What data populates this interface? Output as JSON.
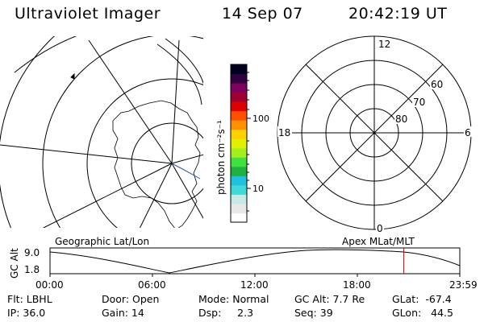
{
  "header": {
    "instrument": "Ultraviolet Imager",
    "date": "14 Sep 07",
    "time": "20:42:19 UT"
  },
  "colorbar": {
    "unit_label": "photon cm⁻²s⁻¹",
    "ticks": [
      "100",
      "10"
    ],
    "colors": [
      "#ffffff",
      "#e8e8e8",
      "#c8e8e8",
      "#40d8d8",
      "#20c0e0",
      "#20b040",
      "#40e040",
      "#a0f020",
      "#e0f000",
      "#ffd000",
      "#ff9000",
      "#ff5000",
      "#e00000",
      "#a00030",
      "#800060",
      "#300040",
      "#000020"
    ]
  },
  "polar_plot": {
    "mlt_labels": {
      "top": "12",
      "left": "18",
      "right": "6",
      "bottom": "0"
    },
    "lat_labels": [
      "60",
      "70",
      "80"
    ]
  },
  "timeline": {
    "left_title": "Geographic Lat/Lon",
    "right_title": "Apex MLat/MLT",
    "ylabel": "GC Alt",
    "yticks": [
      "9.0",
      "1.8"
    ],
    "xticks": [
      "00:00",
      "06:00",
      "12:00",
      "18:00",
      "23:59"
    ],
    "marker_time": "20:42:19",
    "marker_color": "#cc0000"
  },
  "info": {
    "flt": "Flt: LBHL",
    "ip": "IP: 36.0",
    "door": "Door: Open",
    "gain": "Gain: 14",
    "mode": "Mode: Normal",
    "dsp": "Dsp:     2.3",
    "gc_alt": "GC Alt: 7.7 Re",
    "seq": "Seq: 39",
    "glat": "GLat:  -67.4",
    "glon": "GLon:   44.5"
  }
}
